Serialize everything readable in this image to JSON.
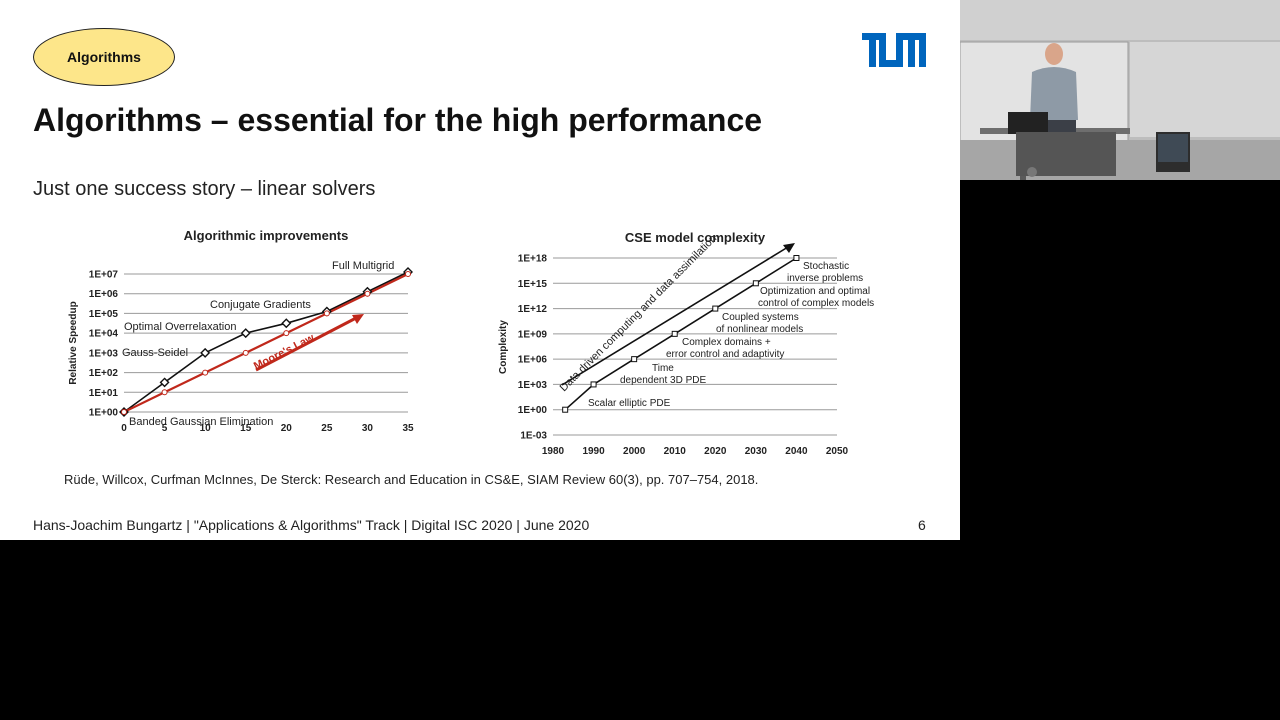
{
  "slide": {
    "topic_badge": "Algorithms",
    "title": "Algorithms – essential for the high performance",
    "subtitle": "Just one success story – linear solvers",
    "citation": "Rüde, Willcox, Curfman McInnes, De Sterck: Research and Education in CS&E, SIAM Review 60(3), pp. 707–754, 2018.",
    "footer": "Hans-Joachim Bungartz | \"Applications & Algorithms\" Track | Digital ISC 2020 | June 2020",
    "page_number": "6"
  },
  "colors": {
    "badge": "#fde68a",
    "logo": "#0065bd",
    "moores_law": "#c0281b"
  },
  "chart_data": [
    {
      "type": "line",
      "title": "Algorithmic improvements",
      "xlabel": "",
      "ylabel": "Relative Speedup",
      "y_scale": "log",
      "x_ticks": [
        0,
        5,
        10,
        15,
        20,
        25,
        30,
        35
      ],
      "y_ticks": [
        "1E+00",
        "1E+01",
        "1E+02",
        "1E+03",
        "1E+04",
        "1E+05",
        "1E+06",
        "1E+07"
      ],
      "xlim": [
        0,
        35
      ],
      "ylim_exp": [
        0,
        7
      ],
      "grid": true,
      "series": [
        {
          "color": "#111111",
          "marker": "diamond",
          "points": [
            [
              0,
              0
            ],
            [
              5,
              1.5
            ],
            [
              10,
              3
            ],
            [
              15,
              4
            ],
            [
              20,
              4.5
            ],
            [
              25,
              5.1
            ],
            [
              30,
              6.1
            ],
            [
              35,
              7.1
            ]
          ]
        },
        {
          "color": "#c0281b",
          "marker": "circle",
          "points": [
            [
              0,
              0
            ],
            [
              5,
              1
            ],
            [
              10,
              2
            ],
            [
              15,
              3
            ],
            [
              20,
              4
            ],
            [
              25,
              5
            ],
            [
              30,
              6
            ],
            [
              35,
              7
            ]
          ]
        }
      ],
      "annotations": {
        "arrow_label": "Moore's Law",
        "banded": "Banded Gaussian Elimination",
        "gauss_seidel": "Gauss-Seidel",
        "optimal_overrelaxation": "Optimal Overrelaxation",
        "conjugate_gradients": "Conjugate Gradients",
        "full_multigrid": "Full Multigrid"
      }
    },
    {
      "type": "line",
      "title": "CSE model complexity",
      "xlabel": "",
      "ylabel": "Complexity",
      "y_scale": "log",
      "x_ticks": [
        1980,
        1990,
        2000,
        2010,
        2020,
        2030,
        2040,
        2050
      ],
      "y_ticks": [
        "1E-03",
        "1E+00",
        "1E+03",
        "1E+06",
        "1E+09",
        "1E+12",
        "1E+15",
        "1E+18"
      ],
      "xlim": [
        1980,
        2050
      ],
      "ylim_exp": [
        -3,
        18
      ],
      "grid": true,
      "series": [
        {
          "color": "#111111",
          "marker": "square",
          "points": [
            [
              1983,
              0
            ],
            [
              1990,
              3
            ],
            [
              2000,
              6
            ],
            [
              2010,
              9
            ],
            [
              2020,
              12
            ],
            [
              2030,
              15
            ],
            [
              2040,
              18
            ]
          ]
        }
      ],
      "annotations": {
        "arrow_label": "Data driven computing and data assimilation",
        "scalar": "Scalar elliptic PDE",
        "time_1": "Time",
        "time_2": "dependent 3D PDE",
        "complex_1": "Complex domains +",
        "complex_2": "error control and adaptivity",
        "coupled_1": "Coupled systems",
        "coupled_2": "of nonlinear models",
        "optim_1": "Optimization and optimal",
        "optim_2": "control of complex models",
        "stoch_1": "Stochastic",
        "stoch_2": "inverse problems"
      }
    }
  ]
}
